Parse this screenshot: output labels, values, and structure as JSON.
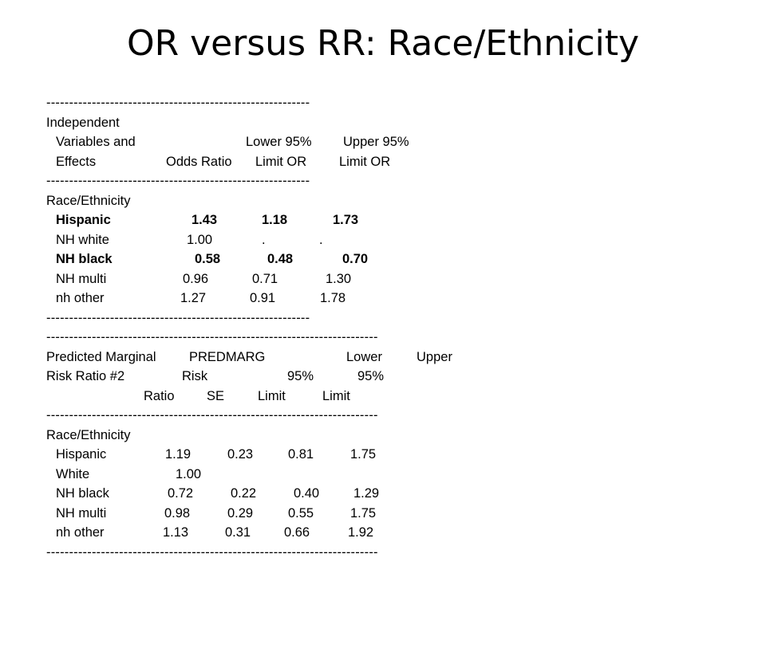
{
  "slide": {
    "title": "OR versus RR: Race/Ethnicity"
  },
  "or_table": {
    "rule": "----------------------------------------------------------",
    "header": {
      "line1": "Independent",
      "line2_a": "Variables and",
      "line2_b": "Lower 95%",
      "line2_c": "Upper 95%",
      "line3_a": "Effects",
      "line3_b": "Odds Ratio",
      "line3_c": "Limit OR",
      "line3_d": "Limit OR"
    },
    "group_label": "Race/Ethnicity",
    "rows": [
      {
        "label": "Hispanic",
        "or": "1.43",
        "lower": "1.18",
        "upper": "1.73"
      },
      {
        "label": "NH white",
        "or": "1.00",
        "lower": ".",
        "upper": "."
      },
      {
        "label": "NH black",
        "or": "0.58",
        "lower": "0.48",
        "upper": "0.70"
      },
      {
        "label": "NH multi",
        "or": "0.96",
        "lower": "0.71",
        "upper": "1.30"
      },
      {
        "label": "nh other",
        "or": "1.27",
        "lower": "0.91",
        "upper": "1.78"
      }
    ]
  },
  "rr_table": {
    "rule": "-------------------------------------------------------------------------",
    "header": {
      "line1_a": "Predicted Marginal",
      "line1_b": "PREDMARG",
      "line1_c": "Lower",
      "line1_d": "Upper",
      "line2_a": "Risk Ratio #2",
      "line2_b": "Risk",
      "line2_c": "95%",
      "line2_d": "95%",
      "line3_a": "Ratio",
      "line3_b": "SE",
      "line3_c": "Limit",
      "line3_d": "Limit"
    },
    "group_label": "Race/Ethnicity",
    "rows": [
      {
        "label": "Hispanic",
        "ratio": "1.19",
        "se": "0.23",
        "lower": "0.81",
        "upper": "1.75"
      },
      {
        "label": "White",
        "ratio": "1.00",
        "se": "",
        "lower": "",
        "upper": ""
      },
      {
        "label": "NH black",
        "ratio": "0.72",
        "se": "0.22",
        "lower": "0.40",
        "upper": "1.29"
      },
      {
        "label": "NH multi",
        "ratio": "0.98",
        "se": "0.29",
        "lower": "0.55",
        "upper": "1.75"
      },
      {
        "label": "nh other",
        "ratio": "1.13",
        "se": "0.31",
        "lower": "0.66",
        "upper": "1.92"
      }
    ]
  }
}
